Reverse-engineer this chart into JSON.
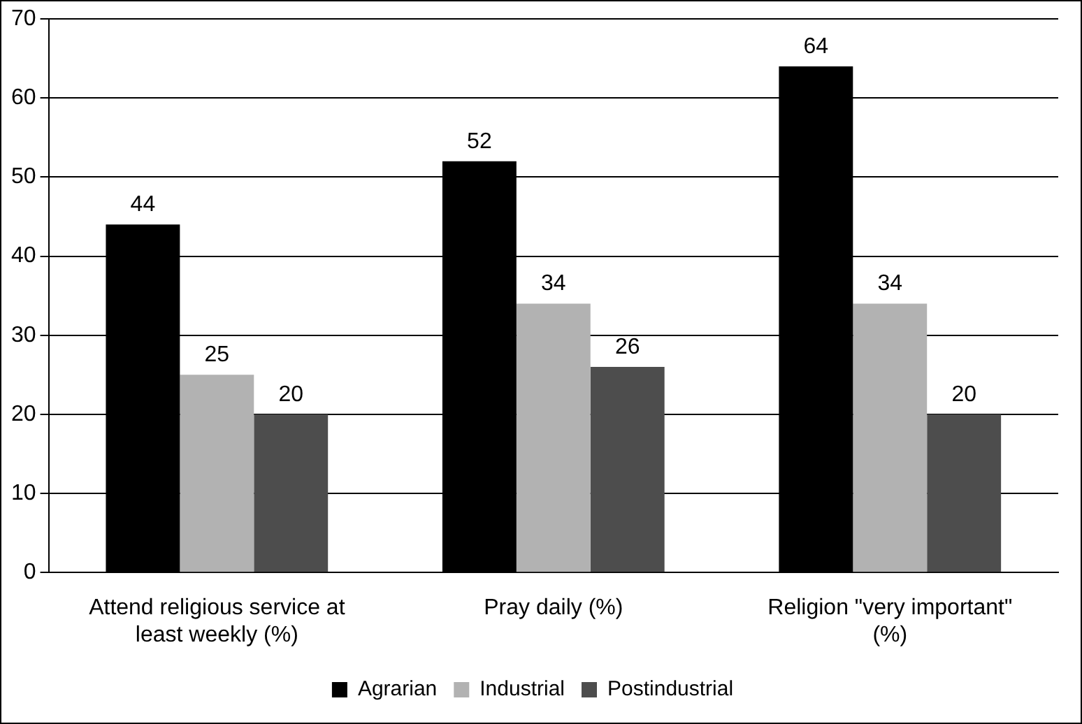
{
  "chart_data": {
    "type": "bar",
    "categories": [
      "Attend religious service at least weekly (%)",
      "Pray daily (%)",
      "Religion \"very important\" (%)"
    ],
    "series": [
      {
        "name": "Agrarian",
        "color": "#000000",
        "values": [
          44,
          52,
          64
        ]
      },
      {
        "name": "Industrial",
        "color": "#b2b2b2",
        "values": [
          25,
          34,
          34
        ]
      },
      {
        "name": "Postindustrial",
        "color": "#4d4d4d",
        "values": [
          20,
          26,
          20
        ]
      }
    ],
    "ylim": [
      0,
      70
    ],
    "yticks": [
      0,
      10,
      20,
      30,
      40,
      50,
      60,
      70
    ],
    "grid": "y",
    "legend": "bottom",
    "data_labels": true
  }
}
